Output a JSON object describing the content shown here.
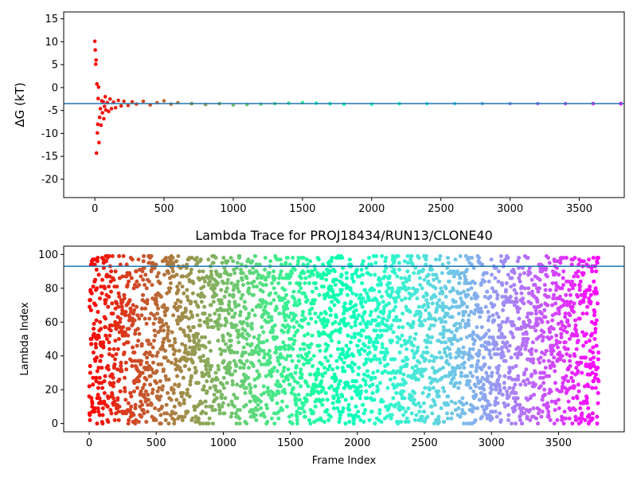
{
  "chart_data": [
    {
      "type": "scatter",
      "title": "",
      "xlabel": "",
      "ylabel": "ΔG (kT)",
      "xlim": [
        -225,
        3825
      ],
      "ylim": [
        -24,
        16.5
      ],
      "xticks": [
        0,
        500,
        1000,
        1500,
        2000,
        2500,
        3000,
        3500
      ],
      "yticks": [
        -20,
        -15,
        -10,
        -5,
        0,
        5,
        10,
        15
      ],
      "grid": false,
      "colormap": "rainbow (red at frame 0 to purple at last frame)",
      "series": [
        {
          "description": "cumulative free energy estimate vs frame",
          "points": [
            [
              0,
              10.1
            ],
            [
              3,
              8.2
            ],
            [
              6,
              5.1
            ],
            [
              9,
              6.0
            ],
            [
              12,
              -14.3
            ],
            [
              15,
              0.8
            ],
            [
              18,
              -9.9
            ],
            [
              21,
              -8.0
            ],
            [
              24,
              -2.4
            ],
            [
              27,
              0.1
            ],
            [
              30,
              -12.0
            ],
            [
              35,
              -6.5
            ],
            [
              40,
              -4.6
            ],
            [
              45,
              -8.2
            ],
            [
              50,
              -2.9
            ],
            [
              55,
              -5.5
            ],
            [
              60,
              -3.1
            ],
            [
              65,
              -6.8
            ],
            [
              70,
              -4.1
            ],
            [
              75,
              -2.0
            ],
            [
              80,
              -4.9
            ],
            [
              90,
              -3.3
            ],
            [
              100,
              -5.2
            ],
            [
              110,
              -2.5
            ],
            [
              120,
              -4.6
            ],
            [
              135,
              -3.2
            ],
            [
              150,
              -4.4
            ],
            [
              170,
              -2.8
            ],
            [
              190,
              -4.0
            ],
            [
              210,
              -3.0
            ],
            [
              240,
              -3.9
            ],
            [
              270,
              -3.1
            ],
            [
              300,
              -3.6
            ],
            [
              350,
              -3.0
            ],
            [
              400,
              -3.8
            ],
            [
              450,
              -3.3
            ],
            [
              500,
              -2.9
            ],
            [
              550,
              -3.6
            ],
            [
              600,
              -3.3
            ],
            [
              700,
              -3.5
            ],
            [
              800,
              -3.7
            ],
            [
              900,
              -3.5
            ],
            [
              1000,
              -3.8
            ],
            [
              1100,
              -3.7
            ],
            [
              1200,
              -3.6
            ],
            [
              1300,
              -3.5
            ],
            [
              1400,
              -3.4
            ],
            [
              1500,
              -3.3
            ],
            [
              1600,
              -3.4
            ],
            [
              1700,
              -3.5
            ],
            [
              1800,
              -3.6
            ],
            [
              2000,
              -3.6
            ],
            [
              2200,
              -3.5
            ],
            [
              2400,
              -3.5
            ],
            [
              2600,
              -3.5
            ],
            [
              2800,
              -3.5
            ],
            [
              3000,
              -3.5
            ],
            [
              3200,
              -3.5
            ],
            [
              3400,
              -3.5
            ],
            [
              3600,
              -3.5
            ],
            [
              3800,
              -3.5
            ]
          ]
        }
      ],
      "hline": -3.5,
      "hline_color": "#1f77b4"
    },
    {
      "type": "scatter",
      "title": "Lambda Trace for PROJ18434/RUN13/CLONE40",
      "xlabel": "Frame Index",
      "ylabel": "Lambda Index",
      "xlim": [
        -190,
        3990
      ],
      "ylim": [
        -4.9,
        104.9
      ],
      "xticks": [
        0,
        500,
        1000,
        1500,
        2000,
        2500,
        3000,
        3500
      ],
      "yticks": [
        0,
        20,
        40,
        60,
        80,
        100
      ],
      "grid": false,
      "colormap": "rainbow (red at frame 0 to purple at last frame)",
      "frames": 3800,
      "value_range": [
        0,
        99
      ],
      "description": "one lambda index per frame, spread uniformly over 0–99",
      "hline": 93,
      "hline_color": "#1f77b4"
    }
  ]
}
